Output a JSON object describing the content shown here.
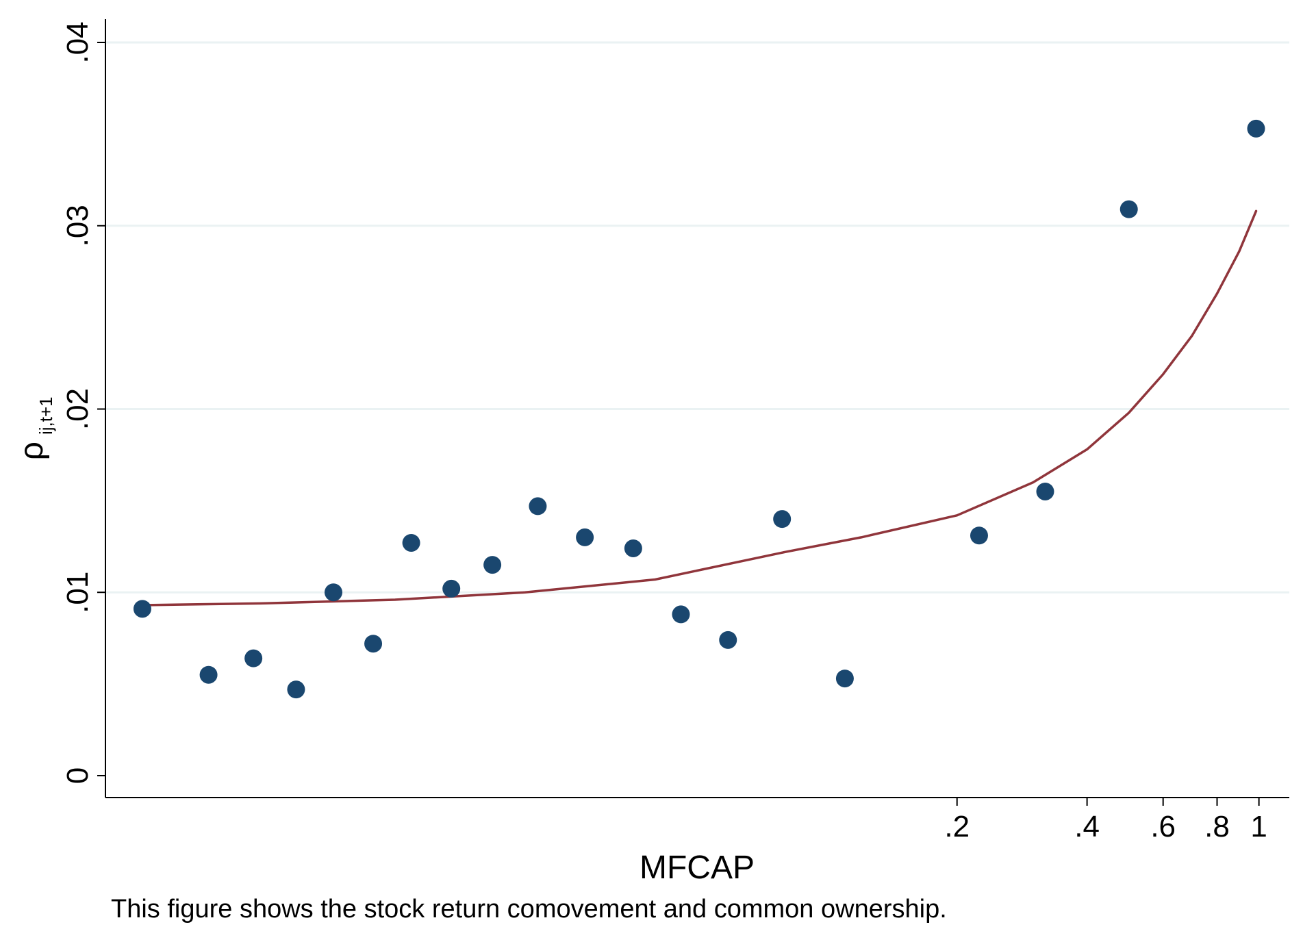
{
  "chart_data": {
    "type": "scatter",
    "x_scale": "log",
    "x_unit_note": "x axis shown on a log scale",
    "xlabel": "MFCAP",
    "ylabel": "ρ",
    "ylabel_subscript": "ij,t+1",
    "ylim": [
      0,
      0.04
    ],
    "xlim": [
      0.0024,
      1.05
    ],
    "yticks": [
      0,
      0.01,
      0.02,
      0.03,
      0.04
    ],
    "ytick_labels": [
      "0",
      ".01",
      ".02",
      ".03",
      ".04"
    ],
    "xticks": [
      0.2,
      0.4,
      0.6,
      0.8,
      1
    ],
    "xtick_labels": [
      ".2",
      ".4",
      ".6",
      ".8",
      "1"
    ],
    "grid": true,
    "colors": {
      "points": "#1a476f",
      "fit_line": "#90353b",
      "grid": "#eaf2f3"
    },
    "points": [
      {
        "x": 0.0026,
        "y": 0.0091
      },
      {
        "x": 0.0037,
        "y": 0.0055
      },
      {
        "x": 0.0047,
        "y": 0.0064
      },
      {
        "x": 0.0059,
        "y": 0.0047
      },
      {
        "x": 0.0072,
        "y": 0.01
      },
      {
        "x": 0.0089,
        "y": 0.0072
      },
      {
        "x": 0.0109,
        "y": 0.0127
      },
      {
        "x": 0.0135,
        "y": 0.0102
      },
      {
        "x": 0.0168,
        "y": 0.0115
      },
      {
        "x": 0.0214,
        "y": 0.0147
      },
      {
        "x": 0.0275,
        "y": 0.013
      },
      {
        "x": 0.0356,
        "y": 0.0124
      },
      {
        "x": 0.0459,
        "y": 0.0088
      },
      {
        "x": 0.059,
        "y": 0.0074
      },
      {
        "x": 0.0787,
        "y": 0.014
      },
      {
        "x": 0.11,
        "y": 0.0053
      },
      {
        "x": 0.225,
        "y": 0.0131
      },
      {
        "x": 0.32,
        "y": 0.0155
      },
      {
        "x": 0.5,
        "y": 0.0309
      },
      {
        "x": 0.985,
        "y": 0.0353
      }
    ],
    "fit_line": {
      "x": [
        0.0026,
        0.005,
        0.01,
        0.02,
        0.04,
        0.08,
        0.12,
        0.2,
        0.3,
        0.4,
        0.5,
        0.6,
        0.7,
        0.8,
        0.9,
        0.985
      ],
      "y": [
        0.0093,
        0.0094,
        0.0096,
        0.01,
        0.0107,
        0.0122,
        0.013,
        0.0142,
        0.016,
        0.0178,
        0.0198,
        0.0219,
        0.024,
        0.0263,
        0.0286,
        0.0308
      ]
    }
  },
  "caption": "This figure shows the stock return comovement and common ownership."
}
